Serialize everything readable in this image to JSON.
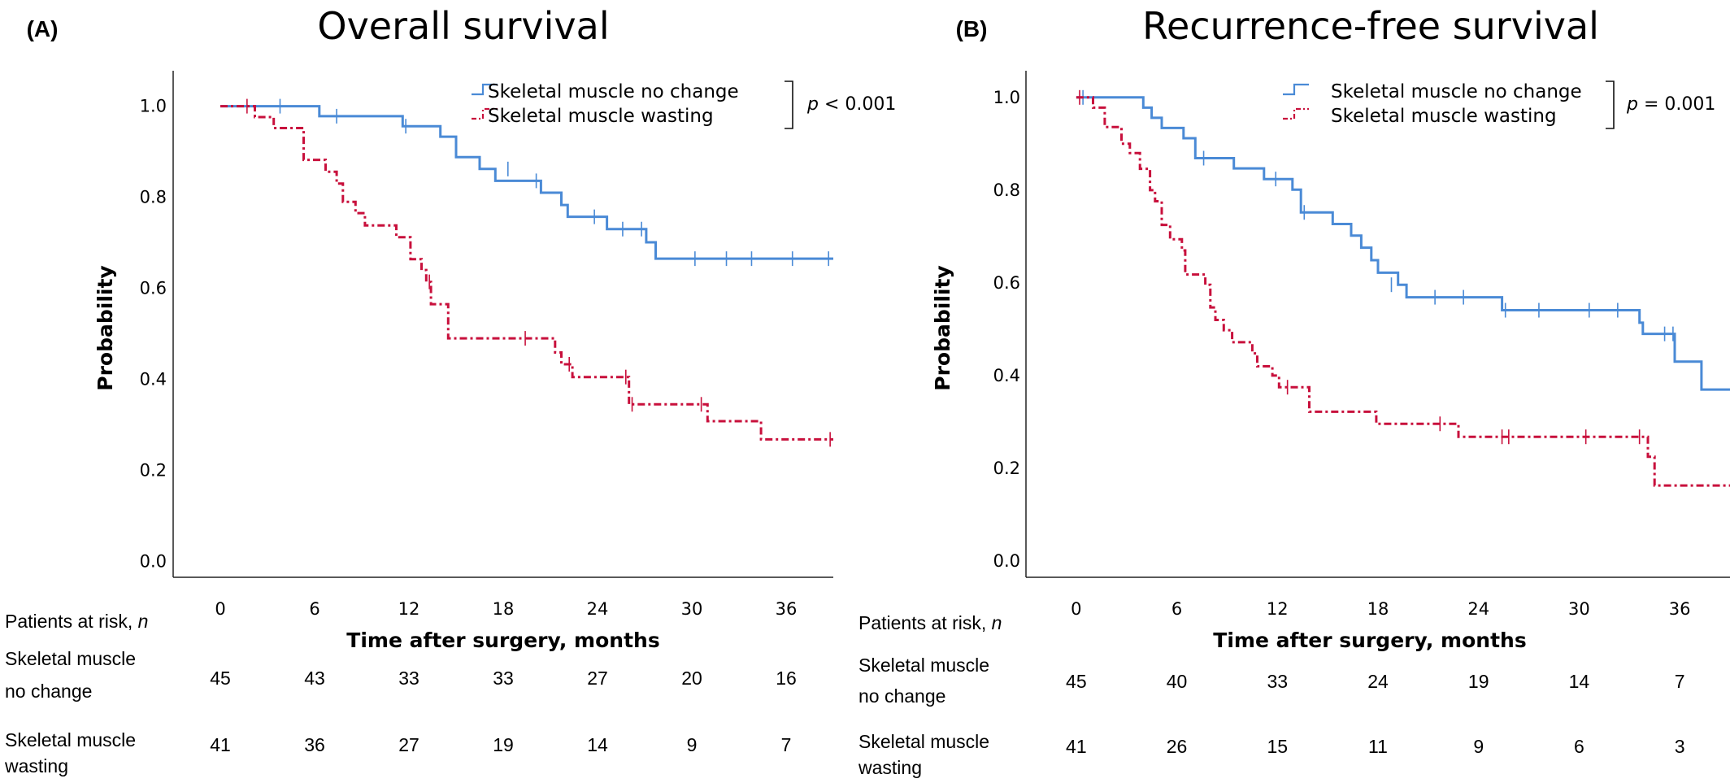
{
  "colors": {
    "no_change": "#4a8ad6",
    "wasting": "#c8103c",
    "axis": "#222222"
  },
  "chart_data": [
    {
      "type": "line",
      "panel_label": "(A)",
      "title": "Overall survival",
      "xlabel": "Time after surgery, months",
      "ylabel": "Probability",
      "xlim": [
        -3,
        39
      ],
      "ylim": [
        -0.035,
        1.06
      ],
      "x_ticks": [
        "0",
        "6",
        "12",
        "18",
        "24",
        "30",
        "36"
      ],
      "y_ticks": [
        "0.0",
        "0.2",
        "0.4",
        "0.6",
        "0.8",
        "1.0"
      ],
      "legend_position": "top-right",
      "p_value": {
        "p": "p",
        "rest": " < 0.001"
      },
      "series": [
        {
          "name": "Skeletal muscle no change",
          "style": "solid",
          "steps": [
            [
              0,
              1.0
            ],
            [
              6.3,
              0.978
            ],
            [
              11.6,
              0.956
            ],
            [
              14,
              0.933
            ],
            [
              15,
              0.888
            ],
            [
              16.5,
              0.862
            ],
            [
              17.5,
              0.836
            ],
            [
              20.4,
              0.81
            ],
            [
              21.7,
              0.783
            ],
            [
              22.1,
              0.757
            ],
            [
              24.6,
              0.73
            ],
            [
              27.1,
              0.701
            ],
            [
              27.7,
              0.665
            ],
            [
              39,
              0.665
            ]
          ],
          "censored": [
            [
              3.8,
              1.0
            ],
            [
              7.4,
              0.978
            ],
            [
              11.8,
              0.956
            ],
            [
              18.3,
              0.862
            ],
            [
              20.1,
              0.836
            ],
            [
              23.8,
              0.757
            ],
            [
              25.6,
              0.73
            ],
            [
              26.8,
              0.73
            ],
            [
              30.2,
              0.665
            ],
            [
              32.2,
              0.665
            ],
            [
              33.8,
              0.665
            ],
            [
              36.4,
              0.665
            ],
            [
              38.7,
              0.665
            ]
          ]
        },
        {
          "name": "Skeletal muscle wasting",
          "style": "dashdot",
          "steps": [
            [
              0,
              1.0
            ],
            [
              2.2,
              0.976
            ],
            [
              3.4,
              0.952
            ],
            [
              5.3,
              0.882
            ],
            [
              6.7,
              0.856
            ],
            [
              7.4,
              0.83
            ],
            [
              7.8,
              0.79
            ],
            [
              8.6,
              0.765
            ],
            [
              9.2,
              0.738
            ],
            [
              11.2,
              0.712
            ],
            [
              12.1,
              0.664
            ],
            [
              12.8,
              0.64
            ],
            [
              13.1,
              0.614
            ],
            [
              13.4,
              0.565
            ],
            [
              14.5,
              0.49
            ],
            [
              21.3,
              0.459
            ],
            [
              21.7,
              0.433
            ],
            [
              22.4,
              0.405
            ],
            [
              26,
              0.345
            ],
            [
              31,
              0.308
            ],
            [
              34.4,
              0.268
            ],
            [
              39,
              0.268
            ]
          ],
          "censored": [
            [
              1.7,
              1.0
            ],
            [
              13.3,
              0.614
            ],
            [
              19.4,
              0.49
            ],
            [
              22.2,
              0.433
            ],
            [
              25.8,
              0.405
            ],
            [
              26.2,
              0.345
            ],
            [
              30.6,
              0.345
            ],
            [
              38.8,
              0.268
            ]
          ]
        }
      ],
      "risk_table": {
        "header": [
          "Patients at risk, ",
          "n"
        ],
        "rows": [
          {
            "label_lines": [
              "Skeletal muscle",
              "no change"
            ],
            "values": [
              "45",
              "43",
              "33",
              "33",
              "27",
              "20",
              "16"
            ]
          },
          {
            "label_lines": [
              "Skeletal muscle",
              "wasting"
            ],
            "values": [
              "41",
              "36",
              "27",
              "19",
              "14",
              "9",
              "7"
            ]
          }
        ]
      }
    },
    {
      "type": "line",
      "panel_label": "(B)",
      "title": "Recurrence-free survival",
      "xlabel": "Time after surgery, months",
      "ylabel": "Probability",
      "xlim": [
        -3,
        39
      ],
      "ylim": [
        -0.035,
        1.04
      ],
      "x_ticks": [
        "0",
        "6",
        "12",
        "18",
        "24",
        "30",
        "36"
      ],
      "y_ticks": [
        "0.0",
        "0.2",
        "0.4",
        "0.6",
        "0.8",
        "1.0"
      ],
      "legend_position": "top-right",
      "p_value": {
        "p": "p",
        "rest": " = 0.001"
      },
      "series": [
        {
          "name": "Skeletal muscle no change",
          "style": "solid",
          "steps": [
            [
              0,
              1.0
            ],
            [
              4,
              0.978
            ],
            [
              4.5,
              0.956
            ],
            [
              5.1,
              0.934
            ],
            [
              6.4,
              0.912
            ],
            [
              7.1,
              0.869
            ],
            [
              9.4,
              0.847
            ],
            [
              11.2,
              0.824
            ],
            [
              12.9,
              0.801
            ],
            [
              13.4,
              0.752
            ],
            [
              15.3,
              0.727
            ],
            [
              16.4,
              0.702
            ],
            [
              17,
              0.676
            ],
            [
              17.6,
              0.649
            ],
            [
              18,
              0.622
            ],
            [
              19.2,
              0.596
            ],
            [
              19.7,
              0.569
            ],
            [
              25.4,
              0.541
            ],
            [
              33.6,
              0.514
            ],
            [
              33.8,
              0.49
            ],
            [
              35.7,
              0.43
            ],
            [
              37.3,
              0.37
            ],
            [
              39,
              0.37
            ]
          ],
          "censored": [
            [
              0.4,
              1.0
            ],
            [
              7.6,
              0.869
            ],
            [
              11.9,
              0.824
            ],
            [
              13.6,
              0.752
            ],
            [
              18.8,
              0.596
            ],
            [
              21.4,
              0.569
            ],
            [
              23.1,
              0.569
            ],
            [
              25.6,
              0.541
            ],
            [
              27.6,
              0.541
            ],
            [
              30.6,
              0.541
            ],
            [
              32.3,
              0.541
            ],
            [
              35.1,
              0.49
            ],
            [
              35.6,
              0.49
            ]
          ]
        },
        {
          "name": "Skeletal muscle wasting",
          "style": "dashdot",
          "steps": [
            [
              0,
              1.0
            ],
            [
              1,
              0.978
            ],
            [
              1.7,
              0.936
            ],
            [
              2.7,
              0.9
            ],
            [
              3.2,
              0.88
            ],
            [
              3.8,
              0.846
            ],
            [
              4.4,
              0.8
            ],
            [
              4.7,
              0.776
            ],
            [
              5.1,
              0.725
            ],
            [
              5.6,
              0.694
            ],
            [
              6.3,
              0.67
            ],
            [
              6.5,
              0.618
            ],
            [
              7.7,
              0.596
            ],
            [
              8,
              0.547
            ],
            [
              8.3,
              0.52
            ],
            [
              8.8,
              0.498
            ],
            [
              9.3,
              0.472
            ],
            [
              10.5,
              0.448
            ],
            [
              10.8,
              0.42
            ],
            [
              11.7,
              0.4
            ],
            [
              12.1,
              0.375
            ],
            [
              13.9,
              0.322
            ],
            [
              17.9,
              0.296
            ],
            [
              22.8,
              0.268
            ],
            [
              34.1,
              0.225
            ],
            [
              34.5,
              0.163
            ],
            [
              39,
              0.163
            ]
          ],
          "censored": [
            [
              0.2,
              1.0
            ],
            [
              12.6,
              0.375
            ],
            [
              21.7,
              0.296
            ],
            [
              25.4,
              0.268
            ],
            [
              25.8,
              0.268
            ],
            [
              30.4,
              0.268
            ],
            [
              33.6,
              0.268
            ]
          ]
        }
      ],
      "risk_table": {
        "header": [
          "Patients at risk, ",
          "n"
        ],
        "rows": [
          {
            "label_lines": [
              "Skeletal muscle",
              "no change"
            ],
            "values": [
              "45",
              "40",
              "33",
              "24",
              "19",
              "14",
              "7"
            ]
          },
          {
            "label_lines": [
              "Skeletal muscle",
              "wasting"
            ],
            "values": [
              "41",
              "26",
              "15",
              "11",
              "9",
              "6",
              "3"
            ]
          }
        ]
      }
    }
  ]
}
